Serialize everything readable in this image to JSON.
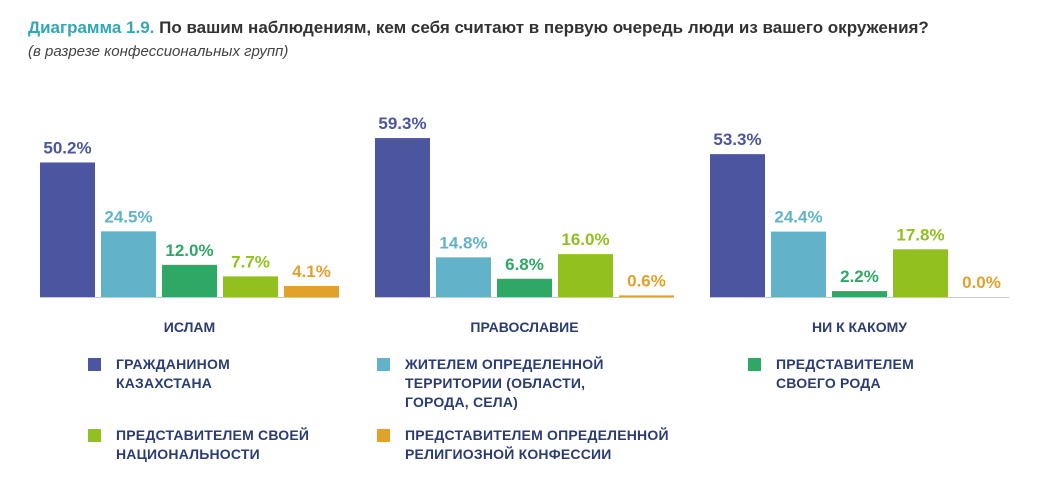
{
  "header": {
    "title_number": "Диаграмма 1.9.",
    "title_text": " По вашим наблюдениям, кем себя считают в первую очередь люди из вашего окружения?",
    "subtitle": "(в разрезе конфессиональных групп)"
  },
  "colors": {
    "series": [
      "#4b55a0",
      "#62b2c9",
      "#2fa865",
      "#92c01f",
      "#e0a22a"
    ],
    "baseline": "#c8c8c8",
    "group_label": "#2b3c73",
    "title_accent": "#34a7b5"
  },
  "chart_data": {
    "type": "bar",
    "categories": [
      "ИСЛАМ",
      "ПРАВОСЛАВИЕ",
      "НИ К КАКОМУ"
    ],
    "series": [
      {
        "name": "ГРАЖДАНИНОМ КАЗАХСТАНА",
        "values": [
          50.2,
          59.3,
          53.3
        ]
      },
      {
        "name": "ЖИТЕЛЕМ ОПРЕДЕЛЕННОЙ ТЕРРИТОРИИ (ОБЛАСТИ, ГОРОДА, СЕЛА)",
        "values": [
          24.5,
          14.8,
          24.4
        ]
      },
      {
        "name": "ПРЕДСТАВИТЕЛЕМ СВОЕГО РОДА",
        "values": [
          12.0,
          6.8,
          2.2
        ]
      },
      {
        "name": "ПРЕДСТАВИТЕЛЕМ СВОЕЙ НАЦИОНАЛЬНОСТИ",
        "values": [
          7.7,
          16.0,
          17.8
        ]
      },
      {
        "name": "ПРЕДСТАВИТЕЛЕМ ОПРЕДЕЛЕННОЙ РЕЛИГИОЗНОЙ КОНФЕССИИ",
        "values": [
          4.1,
          0.6,
          0.0
        ]
      }
    ],
    "value_labels": [
      [
        "50.2%",
        "24.5%",
        "12.0%",
        "7.7%",
        "4.1%"
      ],
      [
        "59.3%",
        "14.8%",
        "6.8%",
        "16.0%",
        "0.6%"
      ],
      [
        "53.3%",
        "24.4%",
        "2.2%",
        "17.8%",
        "0.0%"
      ]
    ],
    "ylim": [
      0,
      60
    ],
    "grid": false,
    "legend_position": "bottom"
  },
  "legend": {
    "items": [
      {
        "lines": [
          "ГРАЖДАНИНОМ",
          "КАЗАХСТАНА"
        ]
      },
      {
        "lines": [
          "ЖИТЕЛЕМ ОПРЕДЕЛЕННОЙ",
          "ТЕРРИТОРИИ (ОБЛАСТИ,",
          "ГОРОДА, СЕЛА)"
        ]
      },
      {
        "lines": [
          "ПРЕДСТАВИТЕЛЕМ",
          "СВОЕГО РОДА"
        ]
      },
      {
        "lines": [
          "ПРЕДСТАВИТЕЛЕМ СВОЕЙ",
          "НАЦИОНАЛЬНОСТИ"
        ]
      },
      {
        "lines": [
          "ПРЕДСТАВИТЕЛЕМ ОПРЕДЕЛЕННОЙ",
          "РЕЛИГИОЗНОЙ КОНФЕССИИ"
        ]
      }
    ]
  }
}
